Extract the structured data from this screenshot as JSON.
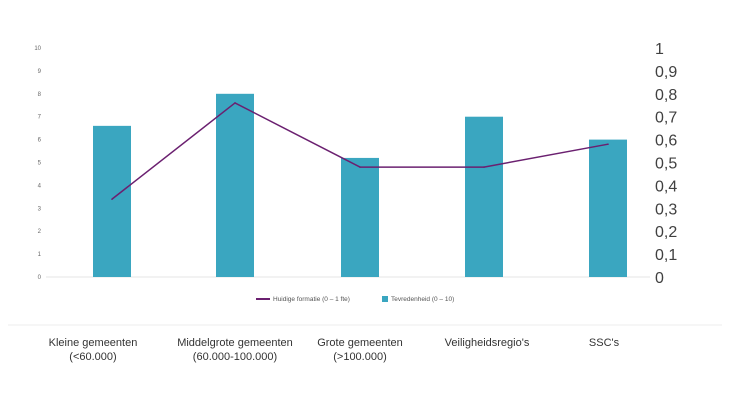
{
  "chart_data": {
    "type": "bar",
    "categories": [
      "Kleine gemeenten\n(<60.000)",
      "Middelgrote gemeenten\n(60.000-100.000)",
      "Grote gemeenten\n(>100.000)",
      "Veiligheidsregio's",
      "SSC's"
    ],
    "series": [
      {
        "name": "Tevredenheid (0 – 10)",
        "type": "bar",
        "axis": "left",
        "color": "#3aa6c0",
        "values": [
          6.6,
          8.0,
          5.2,
          7.0,
          6.0
        ]
      },
      {
        "name": "Huidige formatie (0 – 1 fte)",
        "type": "line",
        "axis": "right",
        "color": "#6b2070",
        "values": [
          0.34,
          0.76,
          0.48,
          0.48,
          0.58
        ]
      }
    ],
    "y_left": {
      "min": 0,
      "max": 10,
      "ticks": [
        "0",
        "1",
        "2",
        "3",
        "4",
        "5",
        "6",
        "7",
        "8",
        "9",
        "10"
      ]
    },
    "y_right": {
      "min": 0,
      "max": 1,
      "ticks": [
        "0",
        "0,1",
        "0,2",
        "0,3",
        "0,4",
        "0,5",
        "0,6",
        "0,7",
        "0,8",
        "0,9",
        "1"
      ]
    },
    "grid": false,
    "legend_position": "bottom"
  },
  "legend": {
    "line_label": "Huidige formatie (0 – 1 fte)",
    "bar_label": "Tevredenheid (0 – 10)"
  },
  "labels": {
    "cat0_line1": "Kleine gemeenten",
    "cat0_line2": "(<60.000)",
    "cat1_line1": "Middelgrote gemeenten",
    "cat1_line2": "(60.000-100.000)",
    "cat2_line1": "Grote gemeenten",
    "cat2_line2": "(>100.000)",
    "cat3_line1": "Veiligheidsregio's",
    "cat3_line2": "",
    "cat4_line1": "SSC's",
    "cat4_line2": ""
  }
}
